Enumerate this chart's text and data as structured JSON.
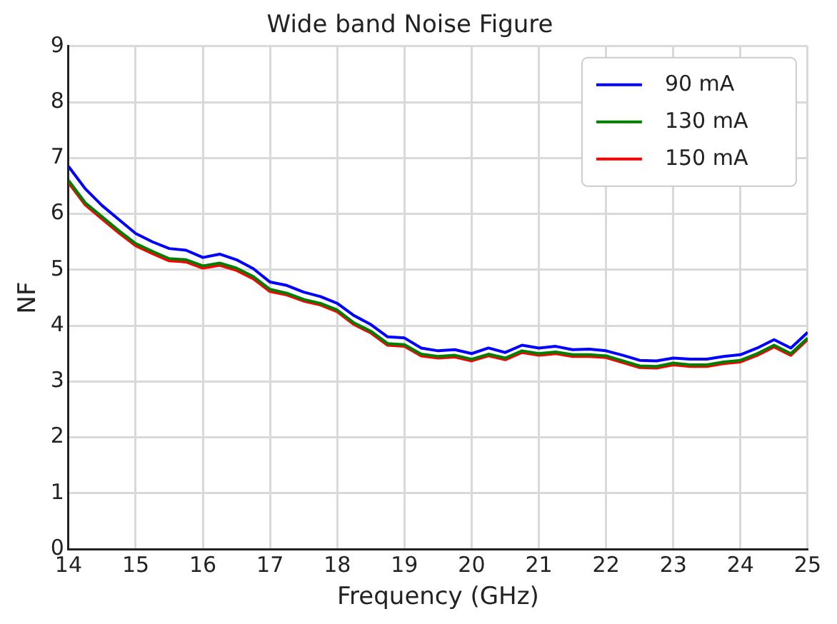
{
  "chart_data": {
    "type": "line",
    "title": "Wide band Noise Figure",
    "xlabel": "Frequency (GHz)",
    "ylabel": "NF",
    "x": [
      14,
      14.25,
      14.5,
      14.75,
      15,
      15.25,
      15.5,
      15.75,
      16,
      16.25,
      16.5,
      16.75,
      17,
      17.25,
      17.5,
      17.75,
      18,
      18.25,
      18.5,
      18.75,
      19,
      19.25,
      19.5,
      19.75,
      20,
      20.25,
      20.5,
      20.75,
      21,
      21.25,
      21.5,
      21.75,
      22,
      22.25,
      22.5,
      22.75,
      23,
      23.25,
      23.5,
      23.75,
      24,
      24.25,
      24.5,
      24.75,
      25
    ],
    "series": [
      {
        "name": "90 mA",
        "color": "#0000ff",
        "values": [
          6.85,
          6.45,
          6.15,
          5.9,
          5.65,
          5.5,
          5.38,
          5.35,
          5.22,
          5.28,
          5.18,
          5.02,
          4.78,
          4.72,
          4.6,
          4.52,
          4.4,
          4.18,
          4.02,
          3.8,
          3.78,
          3.6,
          3.55,
          3.57,
          3.5,
          3.6,
          3.52,
          3.65,
          3.6,
          3.63,
          3.57,
          3.58,
          3.55,
          3.47,
          3.38,
          3.37,
          3.42,
          3.4,
          3.4,
          3.45,
          3.48,
          3.6,
          3.75,
          3.6,
          3.88
        ]
      },
      {
        "name": "130 mA",
        "color": "#008000",
        "values": [
          6.6,
          6.2,
          5.95,
          5.7,
          5.47,
          5.33,
          5.2,
          5.18,
          5.07,
          5.12,
          5.03,
          4.88,
          4.65,
          4.58,
          4.47,
          4.4,
          4.28,
          4.05,
          3.9,
          3.68,
          3.66,
          3.49,
          3.45,
          3.47,
          3.4,
          3.49,
          3.42,
          3.55,
          3.5,
          3.53,
          3.48,
          3.48,
          3.46,
          3.37,
          3.28,
          3.27,
          3.33,
          3.3,
          3.3,
          3.35,
          3.38,
          3.5,
          3.65,
          3.5,
          3.78
        ]
      },
      {
        "name": "150 mA",
        "color": "#ff0000",
        "values": [
          6.56,
          6.16,
          5.91,
          5.66,
          5.43,
          5.29,
          5.16,
          5.14,
          5.03,
          5.08,
          4.99,
          4.84,
          4.61,
          4.55,
          4.44,
          4.37,
          4.25,
          4.02,
          3.87,
          3.65,
          3.63,
          3.46,
          3.42,
          3.44,
          3.37,
          3.46,
          3.39,
          3.52,
          3.47,
          3.5,
          3.45,
          3.45,
          3.43,
          3.34,
          3.25,
          3.24,
          3.3,
          3.27,
          3.27,
          3.32,
          3.35,
          3.47,
          3.62,
          3.47,
          3.75
        ]
      }
    ],
    "xlim": [
      14,
      25
    ],
    "xticks": [
      14,
      15,
      16,
      17,
      18,
      19,
      20,
      21,
      22,
      23,
      24,
      25
    ],
    "ylim": [
      0,
      9
    ],
    "yticks": [
      0,
      1,
      2,
      3,
      4,
      5,
      6,
      7,
      8,
      9
    ],
    "grid": true,
    "legend": "top right",
    "marker": "none",
    "line_style": "solid"
  }
}
